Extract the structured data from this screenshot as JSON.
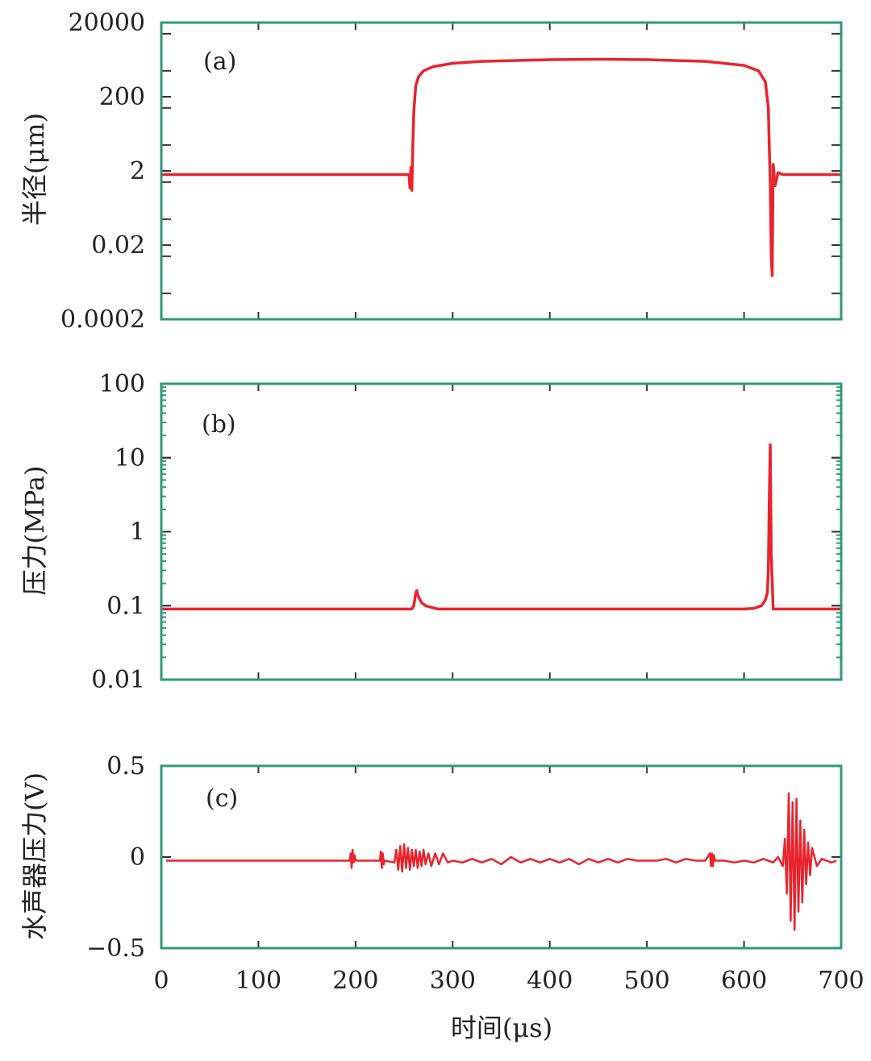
{
  "colors": {
    "frame": "#2e9a78",
    "tick": "#333333",
    "series": "#e8242e",
    "text": "#222222"
  },
  "x_axis": {
    "label": "时间(μs)",
    "ticks": [
      "0",
      "100",
      "200",
      "300",
      "400",
      "500",
      "600",
      "700"
    ],
    "range": [
      0,
      700
    ]
  },
  "chart_data": [
    {
      "type": "line",
      "panel_label": "(a)",
      "ylabel": "半径(μm)",
      "yscale": "log",
      "ylim": [
        0.0002,
        20000
      ],
      "ytick_values": [
        20000,
        200,
        2,
        0.02,
        0.0002
      ],
      "ytick_labels": [
        "20000",
        "200",
        "2",
        "0.02",
        "0.0002"
      ],
      "xlim": [
        0,
        700
      ],
      "series": [
        {
          "x": [
            0,
            255,
            256,
            257,
            258,
            259,
            260,
            262,
            265,
            270,
            280,
            300,
            330,
            400,
            450,
            500,
            560,
            600,
            615,
            622,
            625,
            626,
            627,
            628,
            629,
            630,
            632,
            635,
            640,
            700
          ],
          "y": [
            1.6,
            1.6,
            0.7,
            2.5,
            0.6,
            10,
            80,
            400,
            700,
            1000,
            1300,
            1600,
            1800,
            2000,
            2050,
            2000,
            1800,
            1400,
            1000,
            500,
            100,
            8,
            1,
            0.01,
            0.003,
            3,
            0.8,
            1.8,
            1.6,
            1.6
          ]
        }
      ]
    },
    {
      "type": "line",
      "panel_label": "(b)",
      "ylabel": "压力(MPa)",
      "yscale": "log",
      "ylim": [
        0.01,
        100
      ],
      "ytick_values": [
        100,
        10,
        1,
        0.1,
        0.01
      ],
      "ytick_labels": [
        "100",
        "10",
        "1",
        "0.1",
        "0.01"
      ],
      "xlim": [
        0,
        700
      ],
      "series": [
        {
          "x": [
            0,
            258,
            260,
            261,
            262,
            263,
            265,
            268,
            272,
            278,
            285,
            300,
            400,
            500,
            600,
            610,
            618,
            622,
            624,
            625,
            626,
            627,
            628,
            630,
            700
          ],
          "y": [
            0.09,
            0.09,
            0.1,
            0.12,
            0.15,
            0.16,
            0.13,
            0.11,
            0.1,
            0.095,
            0.09,
            0.09,
            0.09,
            0.09,
            0.09,
            0.092,
            0.1,
            0.12,
            0.15,
            0.3,
            3,
            15,
            0.5,
            0.09,
            0.09
          ]
        }
      ]
    },
    {
      "type": "line",
      "panel_label": "(c)",
      "ylabel": "水声器压力(V)",
      "yscale": "linear",
      "ylim": [
        -0.5,
        0.5
      ],
      "ytick_values": [
        0.5,
        0,
        -0.5
      ],
      "ytick_labels": [
        "0.5",
        "0",
        "−0.5"
      ],
      "xlim": [
        0,
        700
      ],
      "series": [
        {
          "x": [
            5,
            194,
            195,
            196,
            197,
            198,
            199,
            200,
            225,
            226,
            227,
            228,
            229,
            230,
            240,
            242,
            244,
            246,
            248,
            250,
            252,
            254,
            256,
            258,
            260,
            262,
            264,
            266,
            268,
            270,
            272,
            275,
            278,
            282,
            286,
            290,
            295,
            300,
            310,
            320,
            330,
            340,
            350,
            360,
            370,
            380,
            390,
            400,
            410,
            420,
            430,
            440,
            450,
            460,
            470,
            480,
            490,
            500,
            510,
            520,
            530,
            540,
            550,
            560,
            565,
            566,
            567,
            568,
            569,
            570,
            580,
            590,
            600,
            610,
            620,
            630,
            635,
            640,
            642,
            644,
            646,
            648,
            650,
            652,
            654,
            656,
            658,
            660,
            662,
            664,
            666,
            668,
            670,
            675,
            680,
            690,
            695
          ],
          "y": [
            -0.02,
            -0.02,
            0.02,
            -0.06,
            0.04,
            -0.03,
            0.01,
            -0.02,
            -0.02,
            0.03,
            -0.06,
            0.02,
            -0.04,
            -0.02,
            -0.03,
            0.04,
            -0.07,
            0.06,
            -0.08,
            0.07,
            -0.06,
            0.05,
            -0.07,
            0.04,
            -0.05,
            0.04,
            -0.06,
            0.03,
            -0.05,
            0.04,
            -0.04,
            0.02,
            -0.05,
            0.02,
            -0.04,
            0.02,
            -0.03,
            -0.02,
            -0.03,
            -0.01,
            -0.03,
            -0.01,
            -0.04,
            0.0,
            -0.03,
            -0.01,
            -0.03,
            -0.01,
            -0.03,
            -0.01,
            -0.04,
            -0.01,
            -0.03,
            -0.01,
            -0.03,
            -0.01,
            -0.02,
            -0.02,
            -0.02,
            -0.01,
            -0.03,
            -0.01,
            -0.02,
            -0.02,
            0.02,
            -0.05,
            0.02,
            -0.05,
            0.01,
            -0.02,
            -0.02,
            -0.03,
            -0.02,
            -0.03,
            -0.01,
            -0.03,
            0.0,
            -0.05,
            0.1,
            -0.2,
            0.35,
            -0.35,
            0.3,
            -0.4,
            0.32,
            -0.3,
            0.2,
            -0.25,
            0.15,
            -0.15,
            0.08,
            -0.1,
            0.05,
            -0.05,
            -0.01,
            -0.03,
            -0.02
          ]
        }
      ]
    }
  ]
}
